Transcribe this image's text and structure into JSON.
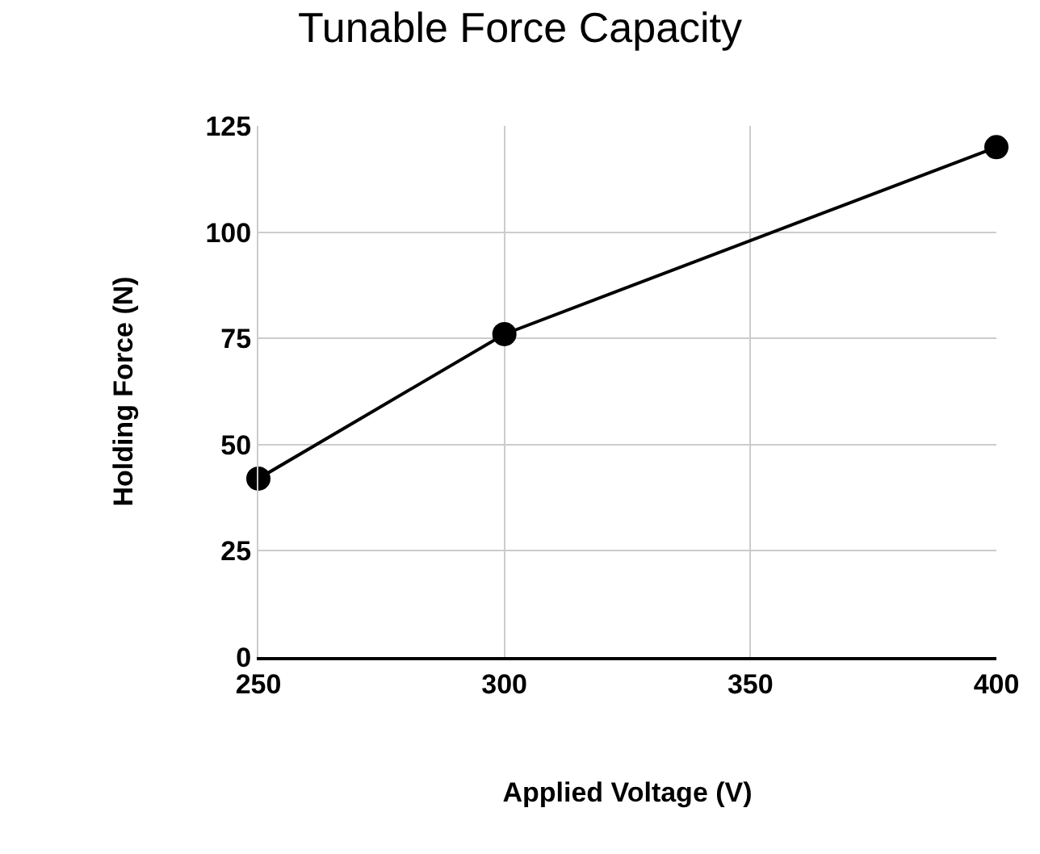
{
  "chart_data": {
    "type": "line",
    "title": "Tunable Force Capacity",
    "xlabel": "Applied Voltage (V)",
    "ylabel": "Holding Force (N)",
    "x": [
      250,
      300,
      400
    ],
    "series": [
      {
        "color": "#000000",
        "values": [
          42,
          76,
          120
        ]
      }
    ],
    "xlim": [
      250,
      400
    ],
    "xticks": [
      250,
      300,
      350,
      400
    ],
    "ylim": [
      0,
      125
    ],
    "yticks": [
      0,
      25,
      50,
      75,
      100,
      125
    ],
    "grid": true,
    "marker": "circle",
    "line_style": "solid"
  }
}
